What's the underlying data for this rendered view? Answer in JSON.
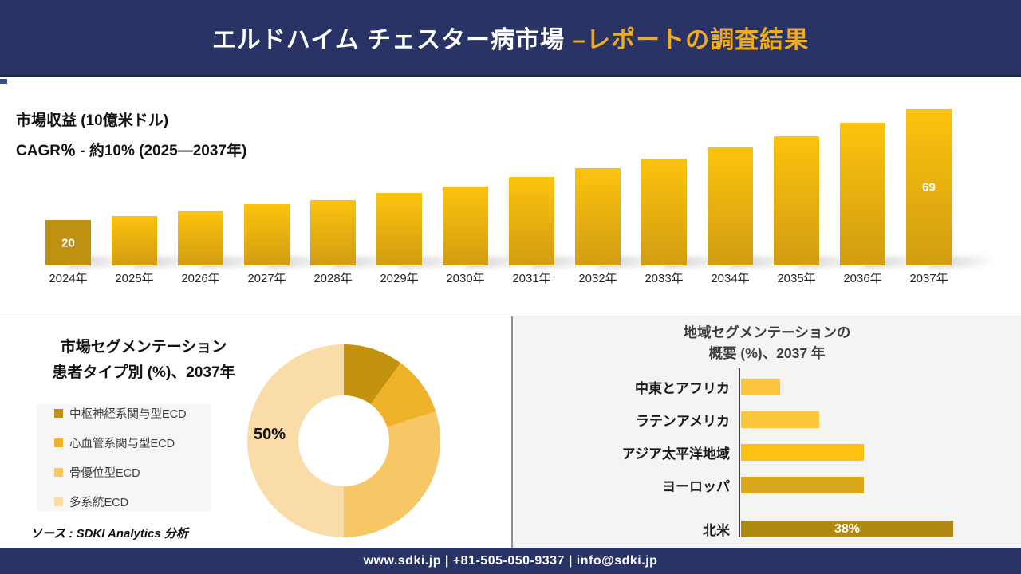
{
  "header": {
    "title_main": "エルドハイム チェスター病市場 ",
    "title_accent": "–レポートの調査結果"
  },
  "chart_data": [
    {
      "type": "bar",
      "title": "市場収益 (10億米ドル)",
      "subtitle": "CAGR％ - 約10% (2025―2037年)",
      "categories": [
        "2024年",
        "2025年",
        "2026年",
        "2027年",
        "2028年",
        "2029年",
        "2030年",
        "2031年",
        "2032年",
        "2033年",
        "2034年",
        "2035年",
        "2036年",
        "2037年"
      ],
      "values": [
        20,
        22,
        24,
        27,
        29,
        32,
        35,
        39,
        43,
        47,
        52,
        57,
        63,
        69
      ],
      "data_labels": {
        "0": "20",
        "13": "69"
      },
      "ylim": [
        0,
        69
      ],
      "grid": false,
      "bar_color_first": "#be9210",
      "bar_gradient_top": "#fcc30d",
      "bar_gradient_bottom": "#d19d12"
    },
    {
      "type": "pie",
      "donut": true,
      "title_line1": "市場セグメンテーション",
      "title_line2": "患者タイプ別 (%)、2037年",
      "labels": [
        "中枢神経系関与型ECD",
        "心血管系関与型ECD",
        "骨優位型ECD",
        "多系統ECD"
      ],
      "values": [
        10,
        10,
        30,
        50
      ],
      "colors": [
        "#c3920e",
        "#efb32b",
        "#f7c665",
        "#fadca8"
      ],
      "shown_label": "50%",
      "legend_position": "left"
    },
    {
      "type": "bar",
      "orientation": "horizontal",
      "title_line1": "地域セグメンテーションの",
      "title_line2": "概要 (%)、2037 年",
      "categories": [
        "中東とアフリカ",
        "ラテンアメリカ",
        "アジア太平洋地域",
        "ヨーロッパ",
        "北米"
      ],
      "values": [
        7,
        14,
        22,
        22,
        38
      ],
      "colors": [
        "#fbc53e",
        "#fbc53e",
        "#fdc114",
        "#daa81c",
        "#b08a10"
      ],
      "data_labels": {
        "4": "38%"
      },
      "xlim": [
        0,
        40
      ]
    }
  ],
  "source": "ソース : SDKI Analytics 分析",
  "footer": {
    "text": "www.sdki.jp | +81-505-050-9337 | info@sdki.jp"
  },
  "colors": {
    "navy": "#293366",
    "accent_yellow": "#efad1d",
    "panel_gray": "#f4f4f3",
    "legend_bg": "#f6f6f6"
  }
}
